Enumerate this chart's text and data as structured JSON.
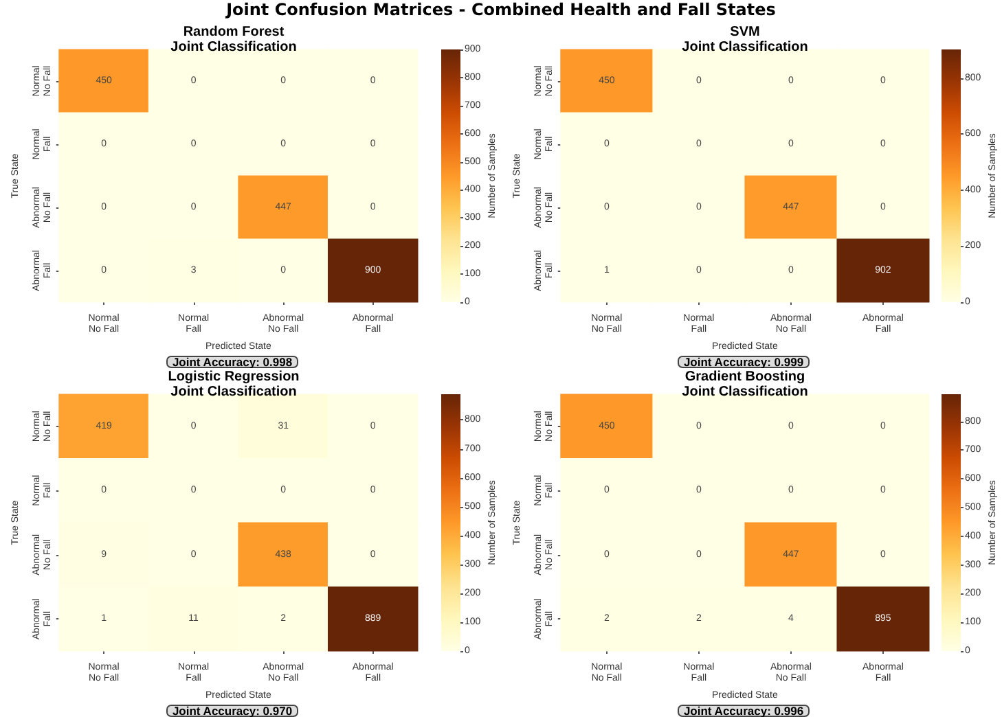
{
  "chart_data": [
    {
      "type": "heatmap",
      "title": "Random Forest\nJoint Classification",
      "xlabel": "Predicted State",
      "ylabel": "True State",
      "clabel": "Number of Samples",
      "annotations": [
        "Joint Confusion Matrices - Combined Health and Fall States",
        "Joint Accuracy: 0.998"
      ],
      "categories": [
        "Normal\nNo Fall",
        "Normal\nFall",
        "Abnormal\nNo Fall",
        "Abnormal\nFall"
      ],
      "y_categories": [
        "Normal\nNo Fall",
        "Normal\nFall",
        "Abnormal\nNo Fall",
        "Abnormal\nFall"
      ],
      "cells": [
        [
          450,
          0,
          0,
          0
        ],
        [
          0,
          0,
          0,
          0
        ],
        [
          0,
          0,
          447,
          0
        ],
        [
          0,
          3,
          0,
          900
        ]
      ],
      "data_labels": true,
      "clim": [
        0,
        900
      ],
      "cticks": [
        0,
        100,
        200,
        300,
        400,
        500,
        600,
        700,
        800,
        900
      ]
    },
    {
      "type": "heatmap",
      "title": "SVM\nJoint Classification",
      "xlabel": "Predicted State",
      "ylabel": "True State",
      "clabel": "Number of Samples",
      "annotations": [
        "Joint Accuracy: 0.999"
      ],
      "categories": [
        "Normal\nNo Fall",
        "Normal\nFall",
        "Abnormal\nNo Fall",
        "Abnormal\nFall"
      ],
      "y_categories": [
        "Normal\nNo Fall",
        "Normal\nFall",
        "Abnormal\nNo Fall",
        "Abnormal\nFall"
      ],
      "cells": [
        [
          450,
          0,
          0,
          0
        ],
        [
          0,
          0,
          0,
          0
        ],
        [
          0,
          0,
          447,
          0
        ],
        [
          1,
          0,
          0,
          902
        ]
      ],
      "data_labels": true,
      "clim": [
        0,
        902
      ],
      "cticks": [
        0,
        200,
        400,
        600,
        800
      ]
    },
    {
      "type": "heatmap",
      "title": "Logistic Regression\nJoint Classification",
      "xlabel": "Predicted State",
      "ylabel": "True State",
      "clabel": "Number of Samples",
      "annotations": [
        "Joint Accuracy: 0.970"
      ],
      "categories": [
        "Normal\nNo Fall",
        "Normal\nFall",
        "Abnormal\nNo Fall",
        "Abnormal\nFall"
      ],
      "y_categories": [
        "Normal\nNo Fall",
        "Normal\nFall",
        "Abnormal\nNo Fall",
        "Abnormal\nFall"
      ],
      "cells": [
        [
          419,
          0,
          31,
          0
        ],
        [
          0,
          0,
          0,
          0
        ],
        [
          9,
          0,
          438,
          0
        ],
        [
          1,
          11,
          2,
          889
        ]
      ],
      "data_labels": true,
      "clim": [
        0,
        889
      ],
      "cticks": [
        0,
        100,
        200,
        300,
        400,
        500,
        600,
        700,
        800
      ]
    },
    {
      "type": "heatmap",
      "title": "Gradient Boosting\nJoint Classification",
      "xlabel": "Predicted State",
      "ylabel": "True State",
      "clabel": "Number of Samples",
      "annotations": [
        "Joint Accuracy: 0.996"
      ],
      "categories": [
        "Normal\nNo Fall",
        "Normal\nFall",
        "Abnormal\nNo Fall",
        "Abnormal\nFall"
      ],
      "y_categories": [
        "Normal\nNo Fall",
        "Normal\nFall",
        "Abnormal\nNo Fall",
        "Abnormal\nFall"
      ],
      "cells": [
        [
          450,
          0,
          0,
          0
        ],
        [
          0,
          0,
          0,
          0
        ],
        [
          0,
          0,
          447,
          0
        ],
        [
          2,
          2,
          4,
          895
        ]
      ],
      "data_labels": true,
      "clim": [
        0,
        895
      ],
      "cticks": [
        0,
        100,
        200,
        300,
        400,
        500,
        600,
        700,
        800
      ]
    }
  ]
}
